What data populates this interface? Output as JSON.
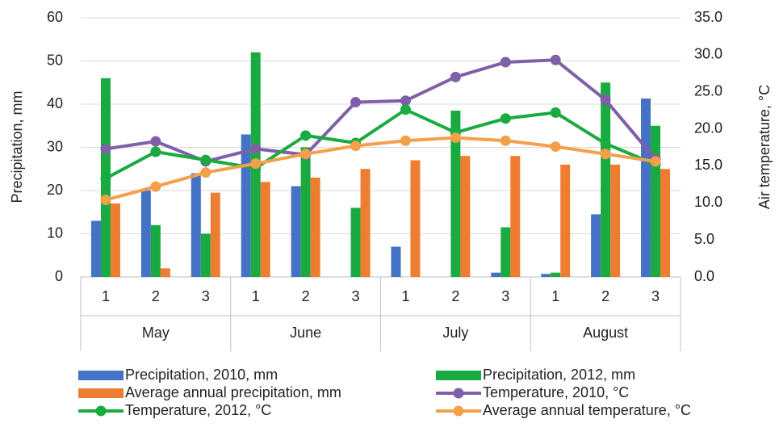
{
  "chart_data": {
    "type": "combo",
    "y_label": "Precipitation, mm",
    "y2_label": "Air temperature, °C",
    "categories": [
      "1",
      "2",
      "3",
      "1",
      "2",
      "3",
      "1",
      "2",
      "3",
      "1",
      "2",
      "3"
    ],
    "groups": [
      "May",
      "June",
      "July",
      "August"
    ],
    "ylim": [
      0,
      60
    ],
    "yticks": [
      0,
      10,
      20,
      30,
      40,
      50,
      60
    ],
    "y2lim": [
      0,
      35
    ],
    "y2ticks": [
      {
        "value": 0,
        "label": "0.0"
      },
      {
        "value": 5,
        "label": "5.0"
      },
      {
        "value": 10,
        "label": "10.0"
      },
      {
        "value": 15,
        "label": "15.0"
      },
      {
        "value": 20,
        "label": "20.0"
      },
      {
        "value": 25,
        "label": "25.0"
      },
      {
        "value": 30,
        "label": "30.0"
      },
      {
        "value": 35,
        "label": "35.0"
      }
    ],
    "grid": true,
    "series": [
      {
        "name": "Precipitation, 2010, mm",
        "type": "bar",
        "color": "#4472c4",
        "values": [
          13,
          20,
          24,
          33,
          21,
          0,
          7,
          0,
          1,
          0.7,
          14.5,
          41.3
        ]
      },
      {
        "name": "Precipitation, 2012, mm",
        "type": "bar",
        "color": "#1aab40",
        "values": [
          46,
          12,
          10,
          52,
          30,
          16,
          0,
          38.5,
          11.5,
          1,
          45,
          35
        ]
      },
      {
        "name": "Average annual precipitation, mm",
        "type": "bar",
        "color": "#ed7d31",
        "values": [
          17,
          2,
          19.5,
          22,
          23,
          25,
          27,
          28,
          28,
          26,
          26,
          25
        ]
      },
      {
        "name": "Temperature, 2010, °C",
        "type": "line",
        "axis": "y2",
        "color": "#7f60a8",
        "values": [
          17.3,
          18.3,
          15.6,
          17.3,
          16.5,
          23.6,
          23.8,
          27.0,
          29.0,
          29.3,
          23.9,
          15.9
        ]
      },
      {
        "name": "Temperature, 2012, °C",
        "type": "line",
        "axis": "y2",
        "color": "#1aab40",
        "values": [
          13.3,
          16.9,
          15.8,
          14.7,
          19.1,
          18.1,
          22.6,
          19.5,
          21.4,
          22.2,
          18.0,
          15.2
        ]
      },
      {
        "name": "Average annual temperature, °C",
        "type": "line",
        "axis": "y2",
        "color": "#f4a04a",
        "values": [
          10.4,
          12.2,
          14.1,
          15.3,
          16.6,
          17.7,
          18.4,
          18.8,
          18.4,
          17.6,
          16.6,
          15.6
        ]
      }
    ]
  }
}
